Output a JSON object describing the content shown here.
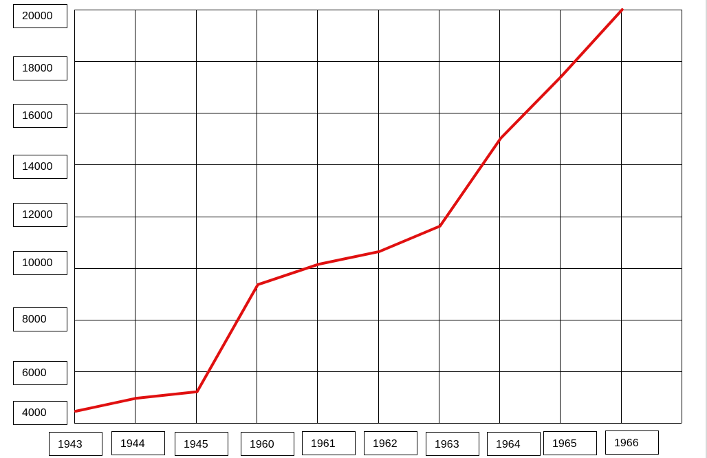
{
  "chart_data": {
    "type": "line",
    "x": [
      "1943",
      "1944",
      "1945",
      "1960",
      "1961",
      "1962",
      "1963",
      "1964",
      "1965",
      "1966"
    ],
    "values": [
      4000,
      4600,
      4900,
      9300,
      10100,
      10600,
      11600,
      15000,
      17400,
      20000
    ],
    "y_ticks": [
      "20000",
      "18000",
      "16000",
      "14000",
      "12000",
      "10000",
      "8000",
      "6000",
      "4000"
    ],
    "ylim": [
      4000,
      20000
    ],
    "grid": true,
    "line_color": "#e01010"
  }
}
